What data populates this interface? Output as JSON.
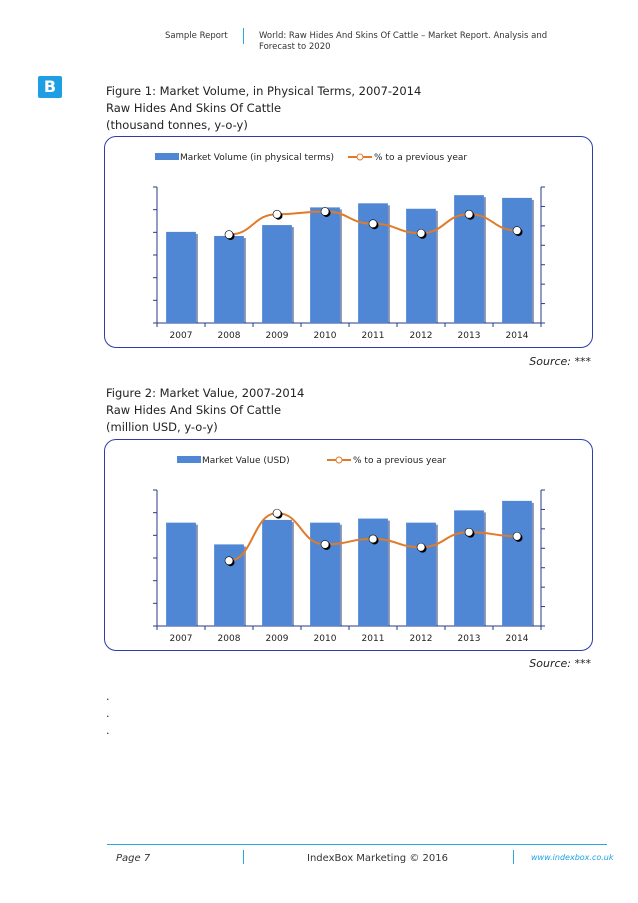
{
  "header": {
    "left": "Sample Report",
    "right": "World: Raw Hides And Skins Of Cattle – Market Report. Analysis and Forecast to 2020"
  },
  "logo": {
    "letter": "B",
    "color": "#1e9fe3"
  },
  "figures": [
    {
      "title_lines": [
        "Figure 1: Market Volume, in Physical Terms, 2007-2014",
        "Raw Hides And Skins Of Cattle",
        "(thousand tonnes, y-o-y)"
      ],
      "source": "Source: ***"
    },
    {
      "title_lines": [
        "Figure 2: Market Value, 2007-2014",
        "Raw Hides And Skins Of Cattle",
        "(million USD, y-o-y)"
      ],
      "source": "Source: ***"
    }
  ],
  "chart_data": [
    {
      "type": "bar",
      "categories": [
        "2007",
        "2008",
        "2009",
        "2010",
        "2011",
        "2012",
        "2013",
        "2014"
      ],
      "series": [
        {
          "name": "Market Volume (in physical terms)",
          "kind": "bar",
          "color": "#4f87d4",
          "values": [
            67,
            64,
            72,
            85,
            88,
            84,
            94,
            92
          ]
        },
        {
          "name": "% to a previous year",
          "kind": "line",
          "color": "#e07b2a",
          "values": [
            null,
            65,
            80,
            82,
            73,
            66,
            80,
            68
          ]
        }
      ],
      "grid": false,
      "legend": "top"
    },
    {
      "type": "bar",
      "categories": [
        "2007",
        "2008",
        "2009",
        "2010",
        "2011",
        "2012",
        "2013",
        "2014"
      ],
      "series": [
        {
          "name": "Market Value (USD)",
          "kind": "bar",
          "color": "#4f87d4",
          "values": [
            76,
            60,
            78,
            76,
            79,
            76,
            85,
            92
          ]
        },
        {
          "name": "% to a previous year",
          "kind": "line",
          "color": "#e07b2a",
          "values": [
            null,
            48,
            83,
            60,
            64,
            58,
            69,
            66
          ]
        }
      ],
      "grid": false,
      "legend": "top"
    }
  ],
  "dots": [
    ".",
    ".",
    "."
  ],
  "footer": {
    "page": "Page 7",
    "center": "IndexBox Marketing © 2016",
    "url": "www.indexbox.co.uk"
  }
}
